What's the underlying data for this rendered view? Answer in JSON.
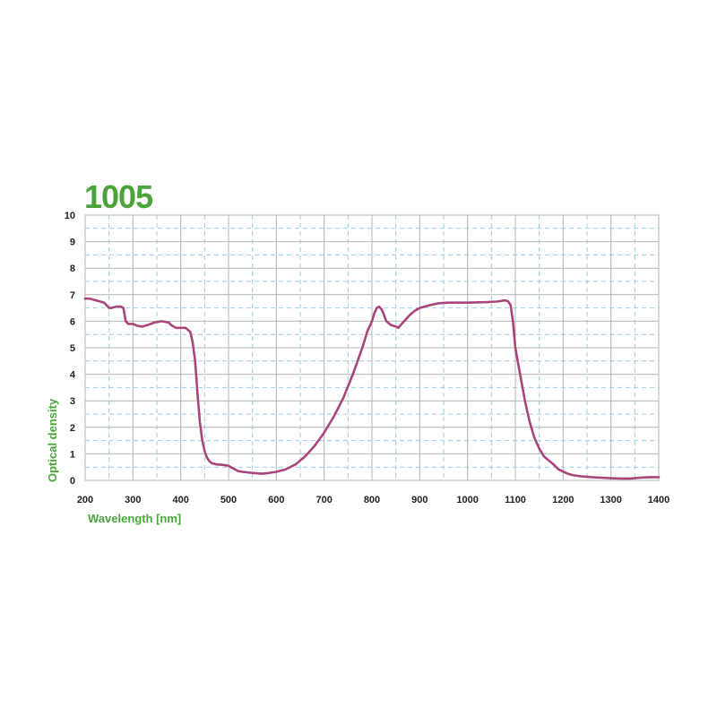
{
  "colors": {
    "title": "#4aa43a",
    "axis_label": "#4aa43a",
    "curve": "#a8457a",
    "major_grid": "#b4b4b4",
    "minor_grid": "#9ccbe4",
    "tick_text": "#222222"
  },
  "chart_data": {
    "type": "line",
    "title": "1005",
    "xlabel": "Wavelength [nm]",
    "ylabel": "Optical density",
    "xlim": [
      200,
      1400
    ],
    "ylim": [
      0,
      10
    ],
    "x_ticks": [
      "200",
      "300",
      "400",
      "500",
      "600",
      "700",
      "800",
      "900",
      "1000",
      "1100",
      "1200",
      "1300",
      "1400"
    ],
    "y_ticks": [
      "0",
      "1",
      "2",
      "3",
      "4",
      "5",
      "6",
      "7",
      "8",
      "9",
      "10"
    ],
    "grid": true,
    "legend": "none",
    "series": [
      {
        "x": [
          200,
          210,
          220,
          240,
          250,
          255,
          265,
          275,
          280,
          285,
          290,
          300,
          310,
          320,
          330,
          345,
          360,
          375,
          380,
          390,
          395,
          400,
          410,
          420,
          425,
          430,
          435,
          440,
          445,
          450,
          455,
          460,
          465,
          475,
          490,
          500,
          510,
          520,
          530,
          550,
          570,
          580,
          600,
          620,
          640,
          660,
          680,
          700,
          720,
          740,
          760,
          780,
          790,
          800,
          805,
          810,
          815,
          820,
          825,
          830,
          840,
          850,
          855,
          860,
          870,
          880,
          890,
          900,
          920,
          940,
          960,
          1000,
          1040,
          1060,
          1070,
          1075,
          1080,
          1085,
          1090,
          1095,
          1100,
          1110,
          1120,
          1130,
          1140,
          1150,
          1160,
          1170,
          1180,
          1190,
          1200,
          1210,
          1220,
          1240,
          1260,
          1280,
          1300,
          1320,
          1340,
          1350,
          1360,
          1380,
          1400
        ],
        "y": [
          6.85,
          6.85,
          6.8,
          6.7,
          6.5,
          6.5,
          6.55,
          6.55,
          6.5,
          6.0,
          5.9,
          5.9,
          5.82,
          5.8,
          5.85,
          5.95,
          6.0,
          5.95,
          5.85,
          5.75,
          5.75,
          5.75,
          5.75,
          5.6,
          5.2,
          4.5,
          3.3,
          2.2,
          1.5,
          1.1,
          0.85,
          0.72,
          0.65,
          0.6,
          0.58,
          0.55,
          0.45,
          0.35,
          0.32,
          0.28,
          0.25,
          0.27,
          0.32,
          0.42,
          0.6,
          0.9,
          1.3,
          1.8,
          2.4,
          3.1,
          4.0,
          5.0,
          5.6,
          6.0,
          6.3,
          6.5,
          6.55,
          6.45,
          6.25,
          6.0,
          5.85,
          5.8,
          5.75,
          5.85,
          6.05,
          6.25,
          6.4,
          6.5,
          6.6,
          6.68,
          6.7,
          6.7,
          6.72,
          6.74,
          6.76,
          6.78,
          6.78,
          6.75,
          6.6,
          6.0,
          5.0,
          4.0,
          3.0,
          2.2,
          1.6,
          1.2,
          0.9,
          0.75,
          0.6,
          0.42,
          0.33,
          0.25,
          0.2,
          0.15,
          0.12,
          0.1,
          0.08,
          0.07,
          0.07,
          0.08,
          0.1,
          0.12,
          0.12
        ]
      }
    ]
  }
}
